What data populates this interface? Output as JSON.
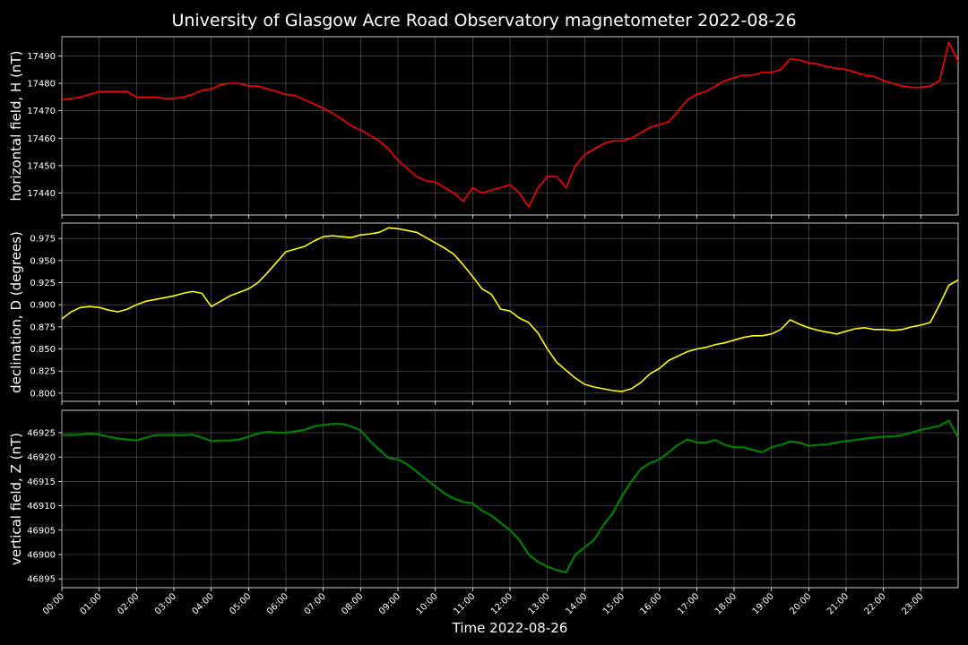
{
  "chart_data": {
    "type": "line",
    "title": "University of Glasgow Acre Road Observatory magnetometer 2022-08-26",
    "xlabel": "Time 2022-08-26",
    "xlim_hours": [
      0,
      24
    ],
    "x_tick_labels": [
      "00:00",
      "01:00",
      "02:00",
      "03:00",
      "04:00",
      "05:00",
      "06:00",
      "07:00",
      "08:00",
      "09:00",
      "10:00",
      "11:00",
      "12:00",
      "13:00",
      "14:00",
      "15:00",
      "16:00",
      "17:00",
      "18:00",
      "19:00",
      "20:00",
      "21:00",
      "22:00",
      "23:00"
    ],
    "grid": true,
    "background": "#000000",
    "panels": [
      {
        "ylabel": "horizontal field, H (nT)",
        "color": "#ff0000",
        "ylim": [
          17432,
          17497
        ],
        "yticks": [
          17440,
          17450,
          17460,
          17470,
          17480,
          17490
        ],
        "x": [
          0,
          0.25,
          0.5,
          0.75,
          1,
          1.25,
          1.5,
          1.75,
          2,
          2.25,
          2.5,
          2.75,
          3,
          3.25,
          3.5,
          3.75,
          4,
          4.25,
          4.5,
          4.75,
          5,
          5.25,
          5.5,
          5.75,
          6,
          6.25,
          6.5,
          6.75,
          7,
          7.25,
          7.5,
          7.75,
          8,
          8.25,
          8.5,
          8.75,
          9,
          9.25,
          9.5,
          9.75,
          10,
          10.25,
          10.5,
          10.75,
          11,
          11.25,
          11.5,
          11.75,
          12,
          12.25,
          12.5,
          12.75,
          13,
          13.25,
          13.5,
          13.75,
          14,
          14.25,
          14.5,
          14.75,
          15,
          15.25,
          15.5,
          15.75,
          16,
          16.25,
          16.5,
          16.75,
          17,
          17.25,
          17.5,
          17.75,
          18,
          18.25,
          18.5,
          18.75,
          19,
          19.25,
          19.5,
          19.75,
          20,
          20.25,
          20.5,
          20.75,
          21,
          21.25,
          21.5,
          21.75,
          22,
          22.25,
          22.5,
          22.75,
          23,
          23.25,
          23.5,
          23.75,
          24
        ],
        "values": [
          17474,
          17474.5,
          17475,
          17476,
          17477,
          17477,
          17477,
          17477,
          17475,
          17475,
          17475,
          17474.5,
          17474.5,
          17475,
          17476,
          17477.5,
          17478,
          17479.5,
          17480,
          17480,
          17479,
          17479,
          17478,
          17477,
          17476,
          17475.5,
          17474,
          17472.5,
          17471,
          17469,
          17467,
          17464.5,
          17463,
          17461,
          17459,
          17456,
          17452,
          17449,
          17446,
          17444.5,
          17444,
          17442,
          17440,
          17437,
          17442,
          17440,
          17441,
          17442,
          17443,
          17440,
          17435,
          17442,
          17446,
          17446,
          17442,
          17450,
          17454,
          17456,
          17458,
          17459,
          17459,
          17460,
          17462,
          17464,
          17465,
          17466,
          17470,
          17474,
          17476,
          17477,
          17479,
          17481,
          17482,
          17483,
          17483,
          17484,
          17484,
          17485,
          17489,
          17488.5,
          17487.5,
          17487,
          17486,
          17485.5,
          17485,
          17484,
          17483,
          17482.5,
          17481,
          17480,
          17479,
          17478.5,
          17478.5,
          17479,
          17481,
          17495,
          17488
        ]
      },
      {
        "ylabel": "declination, D (degrees)",
        "color": "#ffff00",
        "ylim": [
          0.7908,
          0.9924
        ],
        "yticks": [
          0.8,
          0.825,
          0.85,
          0.875,
          0.9,
          0.925,
          0.95,
          0.975
        ],
        "ytick_labels": [
          "0.800",
          "0.825",
          "0.850",
          "0.875",
          "0.900",
          "0.925",
          "0.950",
          "0.975"
        ],
        "x": [
          0,
          0.25,
          0.5,
          0.75,
          1,
          1.25,
          1.5,
          1.75,
          2,
          2.25,
          2.5,
          2.75,
          3,
          3.25,
          3.5,
          3.75,
          4,
          4.25,
          4.5,
          4.75,
          5,
          5.25,
          5.5,
          5.75,
          6,
          6.25,
          6.5,
          6.75,
          7,
          7.25,
          7.5,
          7.75,
          8,
          8.25,
          8.5,
          8.75,
          9,
          9.25,
          9.5,
          9.75,
          10,
          10.25,
          10.5,
          10.75,
          11,
          11.25,
          11.5,
          11.75,
          12,
          12.25,
          12.5,
          12.75,
          13,
          13.25,
          13.5,
          13.75,
          14,
          14.25,
          14.5,
          14.75,
          15,
          15.25,
          15.5,
          15.75,
          16,
          16.25,
          16.5,
          16.75,
          17,
          17.25,
          17.5,
          17.75,
          18,
          18.25,
          18.5,
          18.75,
          19,
          19.25,
          19.5,
          19.75,
          20,
          20.25,
          20.5,
          20.75,
          21,
          21.25,
          21.5,
          21.75,
          22,
          22.25,
          22.5,
          22.75,
          23,
          23.25,
          23.5,
          23.75,
          24
        ],
        "values": [
          0.884,
          0.892,
          0.897,
          0.898,
          0.897,
          0.894,
          0.892,
          0.895,
          0.9,
          0.904,
          0.906,
          0.908,
          0.91,
          0.913,
          0.915,
          0.913,
          0.898,
          0.904,
          0.91,
          0.914,
          0.918,
          0.925,
          0.936,
          0.948,
          0.96,
          0.963,
          0.966,
          0.972,
          0.977,
          0.978,
          0.977,
          0.976,
          0.979,
          0.98,
          0.982,
          0.987,
          0.986,
          0.984,
          0.982,
          0.976,
          0.97,
          0.964,
          0.957,
          0.945,
          0.932,
          0.918,
          0.912,
          0.895,
          0.893,
          0.885,
          0.88,
          0.868,
          0.85,
          0.835,
          0.826,
          0.817,
          0.81,
          0.807,
          0.805,
          0.803,
          0.802,
          0.805,
          0.812,
          0.822,
          0.828,
          0.837,
          0.842,
          0.847,
          0.85,
          0.852,
          0.855,
          0.857,
          0.86,
          0.863,
          0.865,
          0.865,
          0.867,
          0.872,
          0.883,
          0.878,
          0.874,
          0.871,
          0.869,
          0.867,
          0.87,
          0.873,
          0.874,
          0.872,
          0.872,
          0.871,
          0.872,
          0.875,
          0.877,
          0.88,
          0.9,
          0.922,
          0.928
        ]
      },
      {
        "ylabel": "vertical field, Z (nT)",
        "color": "#008000",
        "ylim": [
          46893.2,
          46929.6
        ],
        "yticks": [
          46895,
          46900,
          46905,
          46910,
          46915,
          46920,
          46925
        ],
        "x": [
          0,
          0.25,
          0.5,
          0.75,
          1,
          1.25,
          1.5,
          1.75,
          2,
          2.25,
          2.5,
          2.75,
          3,
          3.25,
          3.5,
          3.75,
          4,
          4.25,
          4.5,
          4.75,
          5,
          5.25,
          5.5,
          5.75,
          6,
          6.25,
          6.5,
          6.75,
          7,
          7.25,
          7.5,
          7.75,
          8,
          8.25,
          8.5,
          8.75,
          9,
          9.25,
          9.5,
          9.75,
          10,
          10.25,
          10.5,
          10.75,
          11,
          11.25,
          11.5,
          11.75,
          12,
          12.25,
          12.5,
          12.75,
          13,
          13.25,
          13.5,
          13.75,
          14,
          14.25,
          14.5,
          14.75,
          15,
          15.25,
          15.5,
          15.75,
          16,
          16.25,
          16.5,
          16.75,
          17,
          17.25,
          17.5,
          17.75,
          18,
          18.25,
          18.5,
          18.75,
          19,
          19.25,
          19.5,
          19.75,
          20,
          20.25,
          20.5,
          20.75,
          21,
          21.25,
          21.5,
          21.75,
          22,
          22.25,
          22.5,
          22.75,
          23,
          23.25,
          23.5,
          23.75,
          24
        ],
        "values": [
          46924.5,
          46924.5,
          46924.6,
          46924.8,
          46924.6,
          46924.2,
          46923.8,
          46923.6,
          46923.4,
          46924,
          46924.5,
          46924.5,
          46924.5,
          46924.5,
          46924.6,
          46924,
          46923.3,
          46923.4,
          46923.4,
          46923.6,
          46924.2,
          46924.8,
          46925.2,
          46925,
          46925,
          46925.3,
          46925.6,
          46926.3,
          46926.6,
          46926.8,
          46926.8,
          46926.3,
          46925.5,
          46923.3,
          46921.5,
          46919.8,
          46919.5,
          46918.5,
          46917,
          46915.5,
          46914,
          46912.5,
          46911.5,
          46910.8,
          46910.5,
          46909,
          46908,
          46906.5,
          46905,
          46903,
          46900,
          46898.5,
          46897.5,
          46896.8,
          46896.3,
          46900,
          46901.5,
          46903,
          46906,
          46908.5,
          46912,
          46915,
          46917.5,
          46918.8,
          46919.5,
          46921,
          46922.5,
          46923.6,
          46923,
          46923,
          46923.5,
          46922.5,
          46922,
          46922,
          46921.5,
          46921,
          46922,
          46922.5,
          46923.2,
          46923,
          46922.3,
          46922.5,
          46922.6,
          46923,
          46923.3,
          46923.5,
          46923.8,
          46924,
          46924.2,
          46924.2,
          46924.5,
          46925,
          46925.6,
          46926,
          46926.4,
          46927.5,
          46924
        ]
      }
    ]
  }
}
